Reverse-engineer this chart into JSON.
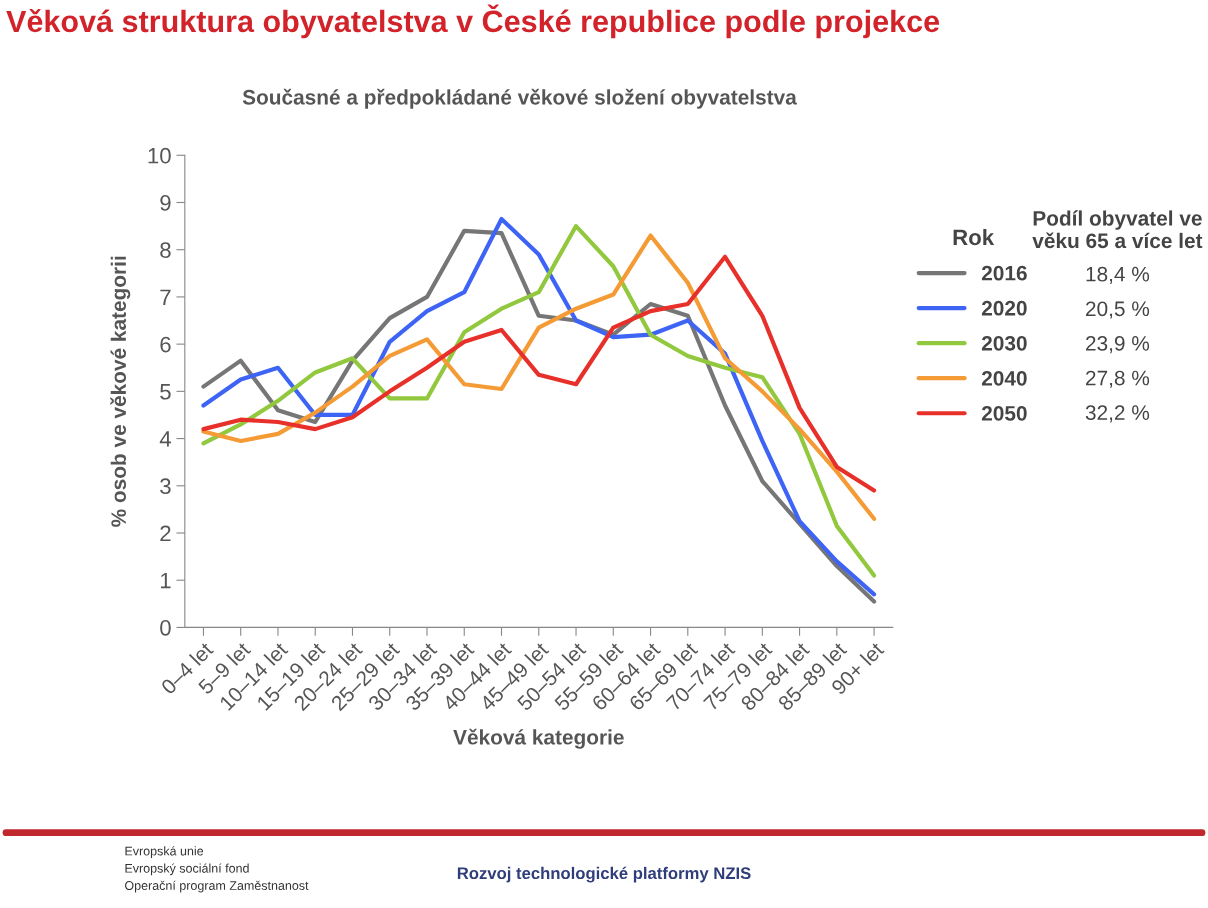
{
  "chart_data": {
    "type": "line",
    "title": "Věková struktura obyvatelstva v České republice podle projekce",
    "subtitle": "Současné a předpokládané věkové složení obyvatelstva",
    "xlabel": "Věková kategorie",
    "ylabel": "% osob ve věkové kategorii",
    "legend_title": "Rok",
    "categories": [
      "0–4 let",
      "5–9 let",
      "10–14 let",
      "15–19 let",
      "20–24 let",
      "25–29 let",
      "30–34 let",
      "35–39 let",
      "40–44 let",
      "45–49 let",
      "50–54 let",
      "55–59 let",
      "60–64 let",
      "65–69 let",
      "70–74 let",
      "75–79 let",
      "80–84 let",
      "85–89 let",
      "90+ let"
    ],
    "series": [
      {
        "name": "2016",
        "color": "#767676",
        "values": [
          5.1,
          5.65,
          4.6,
          4.35,
          5.65,
          6.55,
          7.0,
          8.4,
          8.35,
          6.6,
          6.5,
          6.2,
          6.85,
          6.6,
          4.7,
          3.1,
          2.2,
          1.3,
          0.55
        ]
      },
      {
        "name": "2020",
        "color": "#3d64f5",
        "values": [
          4.7,
          5.25,
          5.5,
          4.5,
          4.5,
          6.05,
          6.7,
          7.1,
          8.65,
          7.9,
          6.5,
          6.15,
          6.2,
          6.5,
          5.8,
          3.95,
          2.25,
          1.4,
          0.7
        ]
      },
      {
        "name": "2030",
        "color": "#92c83e",
        "values": [
          3.9,
          4.3,
          4.8,
          5.4,
          5.7,
          4.85,
          4.85,
          6.25,
          6.75,
          7.1,
          8.5,
          7.65,
          6.2,
          5.75,
          5.5,
          5.3,
          4.1,
          2.15,
          1.1
        ]
      },
      {
        "name": "2040",
        "color": "#f49b36",
        "values": [
          4.15,
          3.95,
          4.1,
          4.55,
          5.1,
          5.75,
          6.1,
          5.15,
          5.05,
          6.35,
          6.75,
          7.05,
          8.3,
          7.3,
          5.7,
          5.0,
          4.2,
          3.3,
          2.3
        ]
      },
      {
        "name": "2050",
        "color": "#e8302a",
        "values": [
          4.2,
          4.4,
          4.35,
          4.2,
          4.45,
          5.0,
          5.5,
          6.05,
          6.3,
          5.35,
          5.15,
          6.35,
          6.7,
          6.85,
          7.85,
          6.6,
          4.65,
          3.4,
          2.9
        ]
      }
    ],
    "ylim": [
      0,
      10
    ],
    "yticks": [
      0,
      1,
      2,
      3,
      4,
      5,
      6,
      7,
      8,
      9,
      10
    ],
    "grid": false,
    "legend": "right",
    "marker": "none",
    "line_style": "solid",
    "annotations": [
      "Podíl obyvatel ve věku 65 a více let",
      "18,4 %",
      "20,5 %",
      "23,9 %",
      "27,8 %",
      "32,2 %",
      "Evropská unie",
      "Evropský sociální fond",
      "Operační program Zaměstnanost",
      "Rozvoj technologické platformy NZIS"
    ]
  }
}
